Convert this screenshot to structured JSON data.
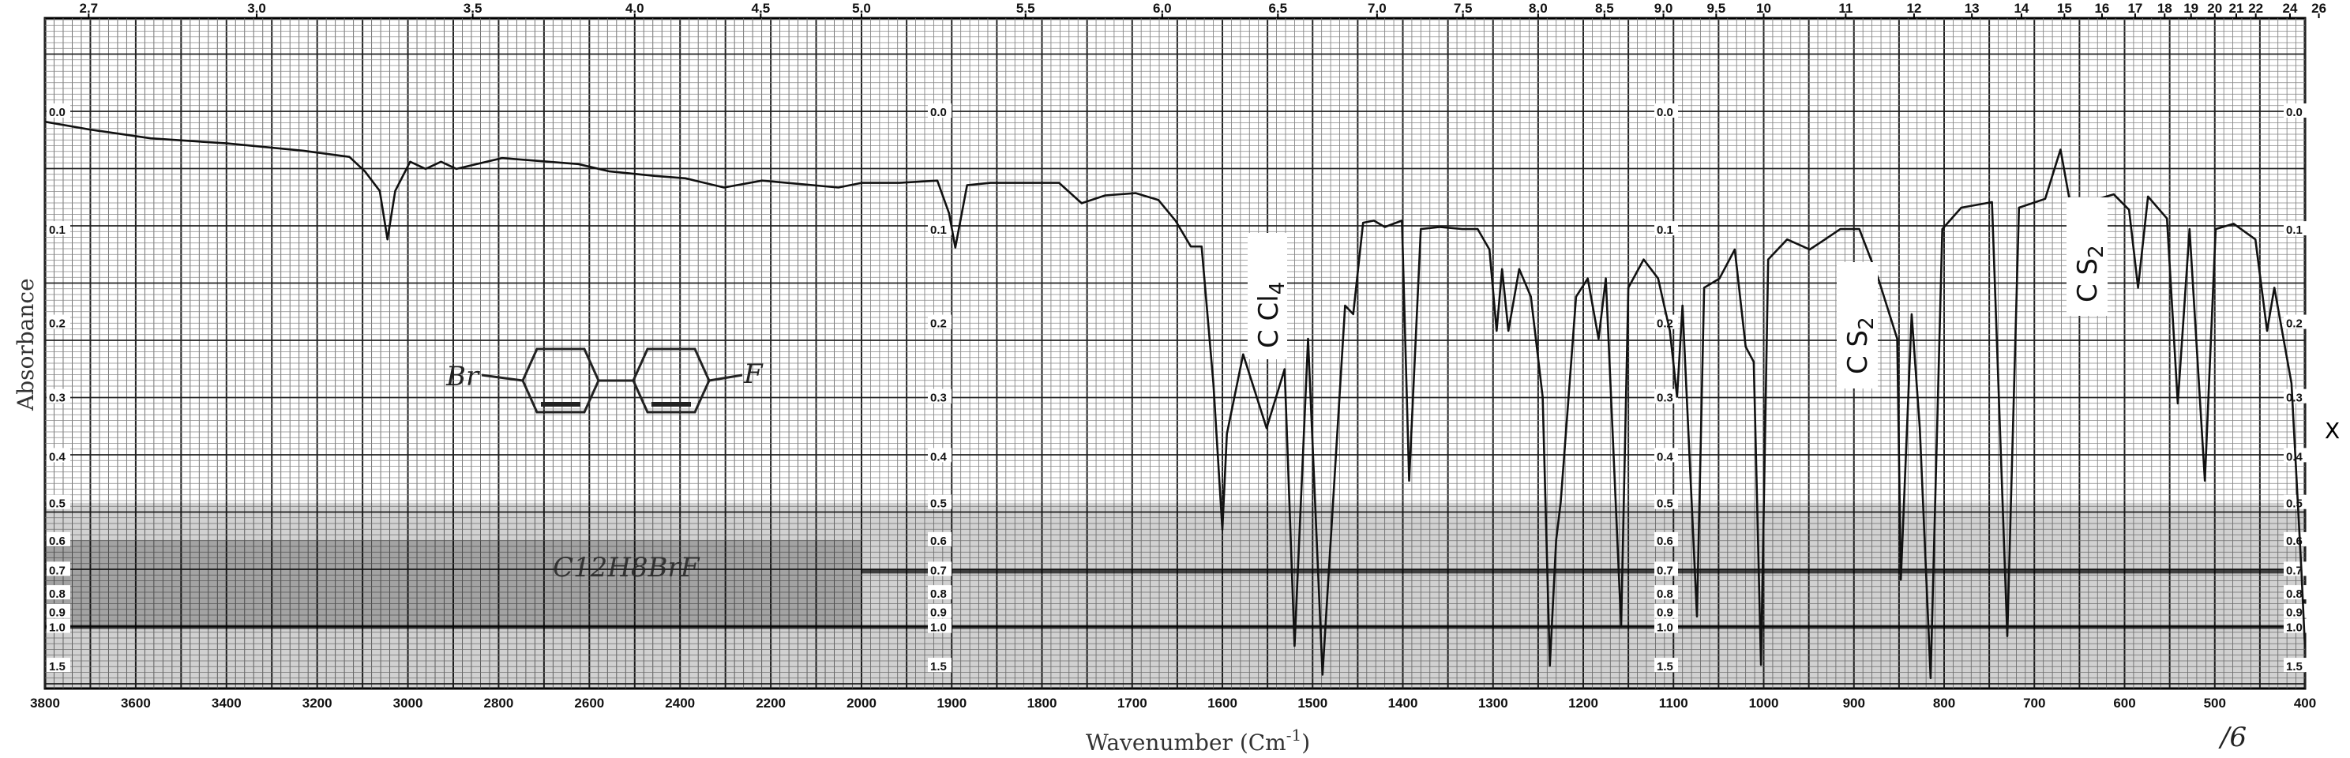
{
  "chart_data": {
    "type": "line",
    "title": "",
    "xlabel": "Wavenumber (Cm",
    "xlabel_sup": "-1",
    "xlabel_close": ")",
    "ylabel": "Absorbance",
    "xlim": [
      3800,
      400
    ],
    "x_scale_change_at": 2000,
    "ylim": [
      0.0,
      1.5
    ],
    "y_scale": "absorbance (linear in transmittance)",
    "grid": true,
    "bottom_ticks": [
      "3800",
      "3600",
      "3400",
      "3200",
      "3000",
      "2800",
      "2600",
      "2400",
      "2200",
      "2000",
      "1900",
      "1800",
      "1700",
      "1600",
      "1500",
      "1400",
      "1300",
      "1200",
      "1100",
      "1000",
      "900",
      "800",
      "700",
      "600",
      "500",
      "400"
    ],
    "top_ticks_microns": [
      "2.7",
      "3.0",
      "3.5",
      "4.0",
      "4.5",
      "5.0",
      "5.5",
      "6.0",
      "6.5",
      "7.0",
      "7.5",
      "8.0",
      "8.5",
      "9.0",
      "9.5",
      "10",
      "11",
      "12",
      "13",
      "14",
      "15",
      "16",
      "17",
      "18",
      "19",
      "20",
      "21",
      "22",
      "24",
      "26"
    ],
    "y_ticks": [
      "0.0",
      "0.1",
      "0.2",
      "0.3",
      "0.4",
      "0.5",
      "0.6",
      "0.7",
      "0.8",
      "0.9",
      "1.0",
      "1.5"
    ],
    "series": [
      {
        "name": "spectrum",
        "color": "#111111",
        "x": [
          3800,
          3702,
          3567,
          3399,
          3230,
          3129,
          3095,
          3062,
          3045,
          3028,
          2995,
          2961,
          2927,
          2893,
          2792,
          2624,
          2557,
          2455,
          2388,
          2303,
          2219,
          2051,
          2000,
          1958,
          1916,
          1903,
          1896,
          1883,
          1857,
          1781,
          1756,
          1730,
          1696,
          1671,
          1652,
          1635,
          1623,
          1610,
          1600,
          1595,
          1577,
          1551,
          1531,
          1520,
          1505,
          1489,
          1464,
          1455,
          1444,
          1432,
          1420,
          1401,
          1393,
          1380,
          1359,
          1334,
          1317,
          1304,
          1296,
          1290,
          1283,
          1271,
          1258,
          1245,
          1237,
          1230,
          1225,
          1208,
          1195,
          1183,
          1175,
          1158,
          1150,
          1133,
          1117,
          1104,
          1096,
          1090,
          1074,
          1066,
          1049,
          1032,
          1020,
          1011,
          1003,
          995,
          974,
          949,
          932,
          915,
          894,
          873,
          852,
          848,
          836,
          827,
          815,
          802,
          781,
          747,
          730,
          717,
          688,
          671,
          659,
          637,
          612,
          595,
          585,
          574,
          553,
          541,
          528,
          511,
          499,
          479,
          455,
          442,
          434,
          415,
          404,
          400
        ],
        "y": [
          0.008,
          0.014,
          0.021,
          0.025,
          0.031,
          0.036,
          0.048,
          0.065,
          0.11,
          0.065,
          0.04,
          0.046,
          0.04,
          0.046,
          0.037,
          0.042,
          0.048,
          0.052,
          0.054,
          0.062,
          0.056,
          0.062,
          0.058,
          0.058,
          0.056,
          0.085,
          0.118,
          0.06,
          0.058,
          0.058,
          0.076,
          0.069,
          0.067,
          0.073,
          0.092,
          0.117,
          0.117,
          0.28,
          0.57,
          0.36,
          0.24,
          0.35,
          0.26,
          1.18,
          0.22,
          1.8,
          0.18,
          0.19,
          0.094,
          0.092,
          0.098,
          0.092,
          0.45,
          0.1,
          0.098,
          0.1,
          0.1,
          0.12,
          0.21,
          0.14,
          0.21,
          0.14,
          0.17,
          0.3,
          1.5,
          0.6,
          0.5,
          0.17,
          0.15,
          0.22,
          0.15,
          1.0,
          0.16,
          0.13,
          0.15,
          0.21,
          0.3,
          0.18,
          0.93,
          0.16,
          0.15,
          0.12,
          0.23,
          0.25,
          1.48,
          0.13,
          0.11,
          0.12,
          0.11,
          0.1,
          0.1,
          0.15,
          0.22,
          0.74,
          0.19,
          0.35,
          2.0,
          0.1,
          0.08,
          0.075,
          1.08,
          0.08,
          0.072,
          0.03,
          0.082,
          0.074,
          0.068,
          0.082,
          0.16,
          0.07,
          0.09,
          0.31,
          0.1,
          0.45,
          0.1,
          0.095,
          0.11,
          0.21,
          0.16,
          0.28,
          0.7,
          1.2
        ]
      }
    ],
    "annotations": [
      {
        "label": "C Cl",
        "sub": "4"
      },
      {
        "label": "C S",
        "sub": "2"
      },
      {
        "label": "C S",
        "sub": "2"
      },
      {
        "label": "X"
      }
    ],
    "handwritten": {
      "structure_left": "Br",
      "structure_right": "F",
      "formula": "C12H8BrF",
      "page_mark": "/6"
    }
  }
}
